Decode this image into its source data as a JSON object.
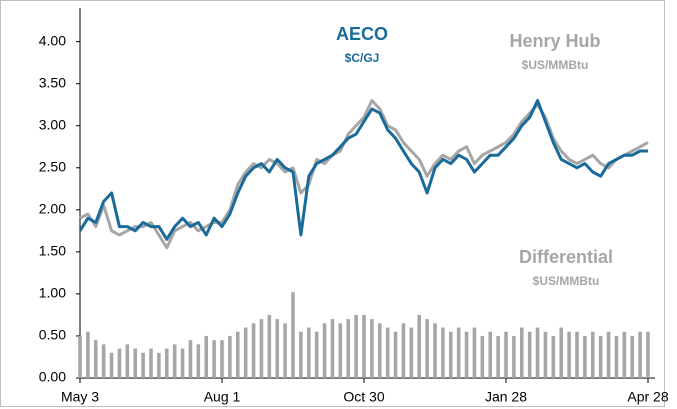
{
  "chart_data": {
    "type": "line",
    "categories": [
      "May 3",
      null,
      null,
      null,
      null,
      null,
      null,
      null,
      null,
      null,
      null,
      null,
      null,
      null,
      null,
      null,
      null,
      null,
      "Aug 1",
      null,
      null,
      null,
      null,
      null,
      null,
      null,
      null,
      null,
      null,
      null,
      null,
      null,
      null,
      null,
      null,
      null,
      "Oct 30",
      null,
      null,
      null,
      null,
      null,
      null,
      null,
      null,
      null,
      null,
      null,
      null,
      null,
      null,
      null,
      null,
      null,
      "Jan 28",
      null,
      null,
      null,
      null,
      null,
      null,
      null,
      null,
      null,
      null,
      null,
      null,
      null,
      null,
      null,
      null,
      null,
      "Apr 28"
    ],
    "series": [
      {
        "name": "Differential",
        "type": "bar",
        "color": "#a6a6a6",
        "values": [
          0.5,
          0.55,
          0.45,
          0.4,
          0.3,
          0.35,
          0.4,
          0.35,
          0.3,
          0.35,
          0.3,
          0.35,
          0.4,
          0.35,
          0.45,
          0.4,
          0.5,
          0.45,
          0.45,
          0.5,
          0.55,
          0.6,
          0.65,
          0.7,
          0.75,
          0.7,
          0.65,
          1.02,
          0.55,
          0.6,
          0.55,
          0.65,
          0.7,
          0.65,
          0.7,
          0.75,
          0.75,
          0.7,
          0.65,
          0.6,
          0.55,
          0.65,
          0.6,
          0.75,
          0.7,
          0.65,
          0.6,
          0.55,
          0.6,
          0.55,
          0.6,
          0.5,
          0.55,
          0.5,
          0.55,
          0.5,
          0.6,
          0.55,
          0.6,
          0.55,
          0.5,
          0.6,
          0.55,
          0.55,
          0.5,
          0.55,
          0.5,
          0.55,
          0.5,
          0.55,
          0.5,
          0.55,
          0.55
        ]
      },
      {
        "name": "Henry Hub",
        "type": "line",
        "color": "#a6a6a6",
        "values": [
          1.9,
          1.95,
          1.8,
          2.05,
          1.75,
          1.7,
          1.75,
          1.8,
          1.8,
          1.85,
          1.7,
          1.55,
          1.75,
          1.8,
          1.85,
          1.75,
          1.8,
          1.85,
          1.85,
          2.0,
          2.3,
          2.45,
          2.55,
          2.5,
          2.6,
          2.55,
          2.45,
          2.5,
          2.2,
          2.3,
          2.6,
          2.55,
          2.65,
          2.7,
          2.9,
          3.0,
          3.1,
          3.3,
          3.2,
          3.0,
          2.95,
          2.8,
          2.7,
          2.6,
          2.4,
          2.55,
          2.65,
          2.6,
          2.7,
          2.75,
          2.55,
          2.65,
          2.7,
          2.75,
          2.8,
          2.9,
          3.05,
          3.15,
          3.25,
          3.1,
          2.85,
          2.7,
          2.6,
          2.55,
          2.6,
          2.65,
          2.55,
          2.5,
          2.6,
          2.65,
          2.7,
          2.75,
          2.8
        ]
      },
      {
        "name": "AECO",
        "type": "line",
        "color": "#1a6a9a",
        "values": [
          1.75,
          1.9,
          1.85,
          2.1,
          2.2,
          1.8,
          1.8,
          1.75,
          1.85,
          1.8,
          1.8,
          1.65,
          1.8,
          1.9,
          1.8,
          1.85,
          1.7,
          1.9,
          1.8,
          1.95,
          2.2,
          2.4,
          2.5,
          2.55,
          2.45,
          2.6,
          2.5,
          2.45,
          1.7,
          2.4,
          2.55,
          2.6,
          2.65,
          2.75,
          2.85,
          2.9,
          3.05,
          3.2,
          3.15,
          2.95,
          2.85,
          2.7,
          2.55,
          2.45,
          2.2,
          2.5,
          2.6,
          2.55,
          2.65,
          2.6,
          2.45,
          2.55,
          2.65,
          2.65,
          2.75,
          2.85,
          3.0,
          3.1,
          3.3,
          3.05,
          2.8,
          2.6,
          2.55,
          2.5,
          2.55,
          2.45,
          2.4,
          2.55,
          2.6,
          2.65,
          2.65,
          2.7,
          2.7
        ]
      }
    ],
    "annotations": [
      "$C/GJ",
      "$US/MMBtu",
      "$US/MMBtu"
    ],
    "ylim": [
      0,
      4.4
    ],
    "yticks": [
      {
        "value": 0,
        "label": "0.00"
      },
      {
        "value": 0.5,
        "label": "0.50"
      },
      {
        "value": 1,
        "label": "1.00"
      },
      {
        "value": 1.5,
        "label": "1.50"
      },
      {
        "value": 2,
        "label": "2.00"
      },
      {
        "value": 2.5,
        "label": "2.50"
      },
      {
        "value": 3,
        "label": "3.00"
      },
      {
        "value": 3.5,
        "label": "3.50"
      },
      {
        "value": 4,
        "label": "4.00"
      }
    ]
  }
}
